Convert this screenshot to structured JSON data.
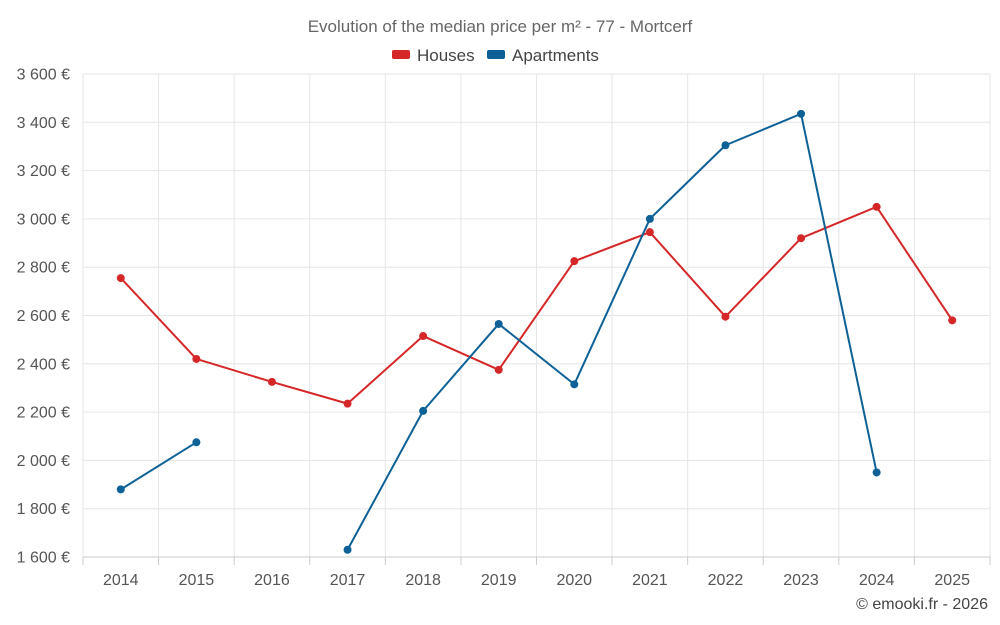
{
  "chart_data": {
    "type": "line",
    "title": "Evolution of the median price per m² - 77 - Mortcerf",
    "categories": [
      "2014",
      "2015",
      "2016",
      "2017",
      "2018",
      "2019",
      "2020",
      "2021",
      "2022",
      "2023",
      "2024",
      "2025"
    ],
    "ylim": [
      1600,
      3600
    ],
    "yticks": [
      1600,
      1800,
      2000,
      2200,
      2400,
      2600,
      2800,
      3000,
      3200,
      3400,
      3600
    ],
    "ytick_labels": [
      "1 600 €",
      "1 800 €",
      "2 000 €",
      "2 200 €",
      "2 400 €",
      "2 600 €",
      "2 800 €",
      "3 000 €",
      "3 200 €",
      "3 400 €",
      "3 600 €"
    ],
    "grid": true,
    "legend_position": "top-center",
    "series": [
      {
        "name": "Houses",
        "color": "#d62728",
        "values": [
          2755,
          2420,
          2325,
          2235,
          2515,
          2375,
          2825,
          2945,
          2595,
          2920,
          3050,
          2580
        ]
      },
      {
        "name": "Apartments",
        "color": "#0e6196",
        "values": [
          1880,
          2075,
          null,
          1630,
          2205,
          2565,
          2315,
          3000,
          3305,
          3435,
          1950,
          null
        ]
      }
    ]
  },
  "credit": "© emooki.fr - 2026"
}
